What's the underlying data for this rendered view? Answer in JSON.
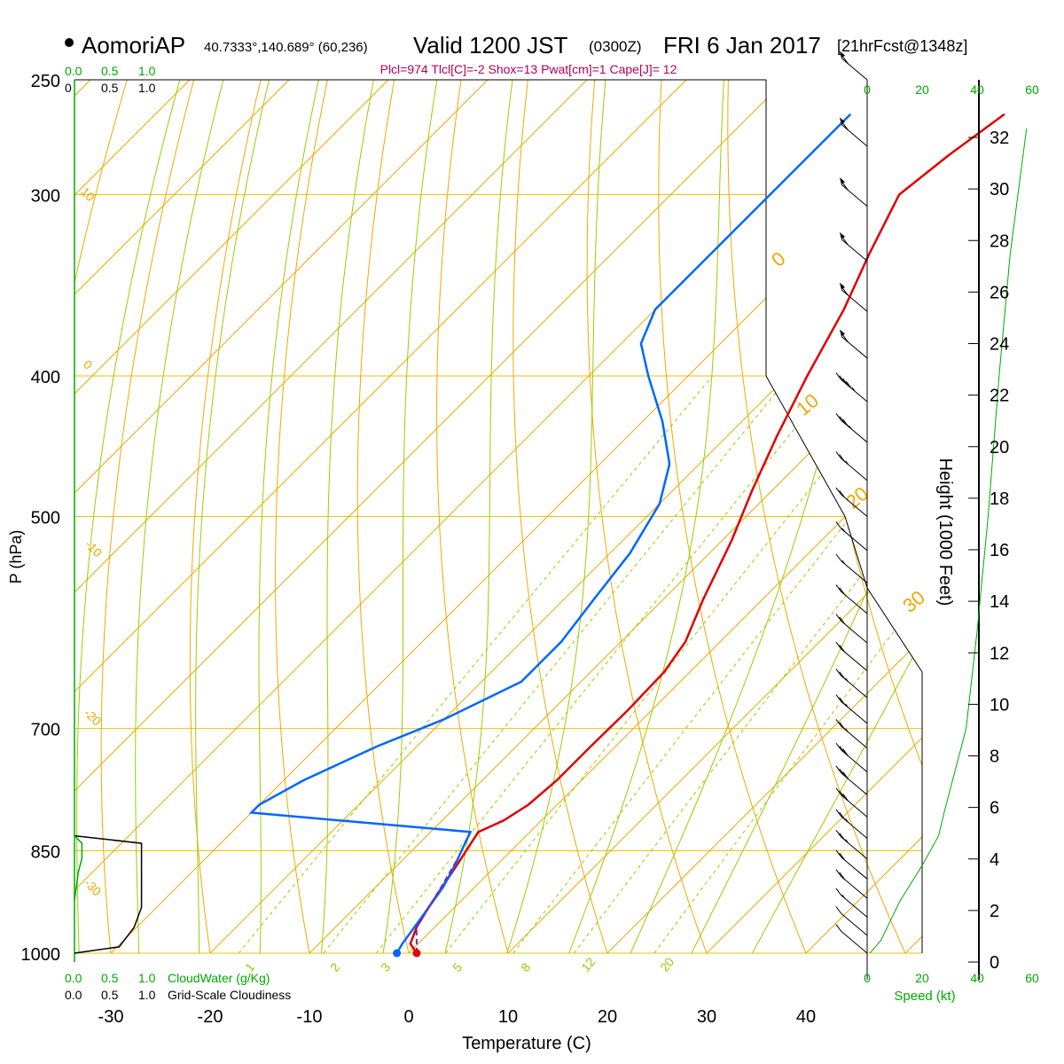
{
  "header": {
    "station": "AomoriAP",
    "coords": "40.7333°,140.689° (60,236)",
    "valid": "Valid 1200 JST",
    "zulu": "(0300Z)",
    "date": "FRI 6 Jan 2017",
    "forecast": "[21hrFcst@1348z]",
    "indices": "Plcl=974 Tlcl[C]=-2 Shox=13 Pwat[cm]=1 Cape[J]= 12"
  },
  "colors": {
    "isobar": "#ebc400",
    "skewed_isotherm": "#f0a800",
    "dry_adiabat": "#f0a800",
    "moist_adiabat": "#9acd00",
    "mixing_ratio": "#9acd00",
    "temperature": "#e00000",
    "dewpoint": "#0066ff",
    "cloud": "#00aa00",
    "indices_text": "#b0005a",
    "speed": "#00aa00"
  },
  "labels": {
    "xlabel": "Temperature (C)",
    "ylabel": "P (hPa)",
    "height_label": "Height (1000 Feet)",
    "speed_label": "Speed (kt)",
    "cloud_water_label": "CloudWater (g/Kg)",
    "cloudiness_label": "Grid-Scale Cloudiness",
    "cloud_scale": [
      "0.0",
      "0.5",
      "1.0"
    ],
    "cloud_scale_top": [
      "0.0",
      "0.5",
      "1.0"
    ],
    "cloudiness_scale": [
      "0.0",
      "0.5",
      "1.0"
    ],
    "cloudiness_scale_top": [
      "0",
      "0.5",
      "1.0"
    ]
  },
  "chart_data": {
    "type": "line",
    "title": "AomoriAP Valid 1200 JST (0300Z) FRI 6 Jan 2017",
    "xlabel": "Temperature (C)",
    "ylabel": "P (hPa)",
    "xlim": [
      -34,
      36
    ],
    "ylim": [
      1000,
      250
    ],
    "x_ticks": [
      -30,
      -20,
      -10,
      0,
      10,
      20,
      30,
      40
    ],
    "pressure_ticks": [
      250,
      300,
      400,
      500,
      700,
      850,
      1000
    ],
    "height_ticks": [
      0,
      2,
      4,
      6,
      8,
      10,
      12,
      14,
      16,
      18,
      20,
      22,
      24,
      26,
      28,
      30,
      32
    ],
    "speed_ticks": [
      0,
      20,
      40,
      60
    ],
    "isotherm_labels": [
      "10",
      "0",
      "-10",
      "-20",
      "-30"
    ],
    "dry_adiabat_labels": [
      "0",
      "10",
      "20",
      "30"
    ],
    "mixing_ratio_labels": [
      "1",
      "2",
      "3",
      "5",
      "8",
      "12",
      "20"
    ],
    "series": [
      {
        "name": "Temperature",
        "points": [
          [
            0.8,
            1000
          ],
          [
            -0.8,
            985
          ],
          [
            -1.8,
            960
          ],
          [
            -2.6,
            930
          ],
          [
            -3.3,
            900
          ],
          [
            -4.0,
            870
          ],
          [
            -5.2,
            825
          ],
          [
            -3.8,
            810
          ],
          [
            -2.9,
            790
          ],
          [
            -2.5,
            760
          ],
          [
            -2.5,
            720
          ],
          [
            -2.4,
            680
          ],
          [
            -2.6,
            640
          ],
          [
            -3.5,
            610
          ],
          [
            -6.0,
            570
          ],
          [
            -9.0,
            520
          ],
          [
            -12.0,
            480
          ],
          [
            -15.0,
            440
          ],
          [
            -18.0,
            400
          ],
          [
            -21.0,
            360
          ],
          [
            -24.0,
            330
          ],
          [
            -27.0,
            300
          ],
          [
            -26.0,
            282
          ],
          [
            -24.5,
            264
          ]
        ]
      },
      {
        "name": "Dewpoint",
        "points": [
          [
            -1.2,
            1000
          ],
          [
            -1.6,
            985
          ],
          [
            -2.4,
            940
          ],
          [
            -3.2,
            900
          ],
          [
            -4.2,
            870
          ],
          [
            -5.0,
            850
          ],
          [
            -6.0,
            825
          ],
          [
            -30.0,
            800
          ],
          [
            -30.0,
            790
          ],
          [
            -28.0,
            760
          ],
          [
            -24.0,
            720
          ],
          [
            -20.0,
            690
          ],
          [
            -16.0,
            650
          ],
          [
            -16.0,
            610
          ],
          [
            -17.0,
            570
          ],
          [
            -18.0,
            530
          ],
          [
            -20.0,
            490
          ],
          [
            -23.0,
            460
          ],
          [
            -28.0,
            430
          ],
          [
            -34.0,
            400
          ],
          [
            -38.0,
            380
          ],
          [
            -40.0,
            360
          ],
          [
            -40.0,
            340
          ],
          [
            -40.0,
            320
          ],
          [
            -40.0,
            300
          ],
          [
            -40.0,
            282
          ],
          [
            -40.0,
            264
          ]
        ]
      }
    ],
    "parcel": [
      [
        0.8,
        1000
      ],
      [
        -1.8,
        960
      ],
      [
        -3.4,
        900
      ],
      [
        -4.6,
        860
      ]
    ],
    "cloudiness": [
      [
        0.0,
        1000
      ],
      [
        0.6,
        990
      ],
      [
        0.8,
        960
      ],
      [
        0.9,
        930
      ],
      [
        0.9,
        860
      ],
      [
        0.9,
        840
      ],
      [
        0.0,
        830
      ]
    ],
    "cloud_water": [
      [
        0.0,
        920
      ],
      [
        0.05,
        880
      ],
      [
        0.1,
        860
      ],
      [
        0.1,
        840
      ],
      [
        0.0,
        830
      ]
    ],
    "wind_speed_profile": [
      [
        1,
        1000
      ],
      [
        2,
        995
      ],
      [
        5,
        980
      ],
      [
        12,
        920
      ],
      [
        20,
        870
      ],
      [
        26,
        830
      ],
      [
        28,
        800
      ],
      [
        36,
        700
      ],
      [
        40,
        600
      ],
      [
        44,
        500
      ],
      [
        48,
        400
      ],
      [
        52,
        330
      ],
      [
        58,
        270
      ]
    ],
    "wind_barbs_kt": [
      10,
      10,
      15,
      20,
      20,
      25,
      25,
      30,
      30,
      30,
      25,
      25,
      25,
      20,
      20,
      20,
      15,
      15,
      20,
      25,
      35,
      45,
      60,
      60,
      60,
      60,
      60,
      60
    ]
  }
}
